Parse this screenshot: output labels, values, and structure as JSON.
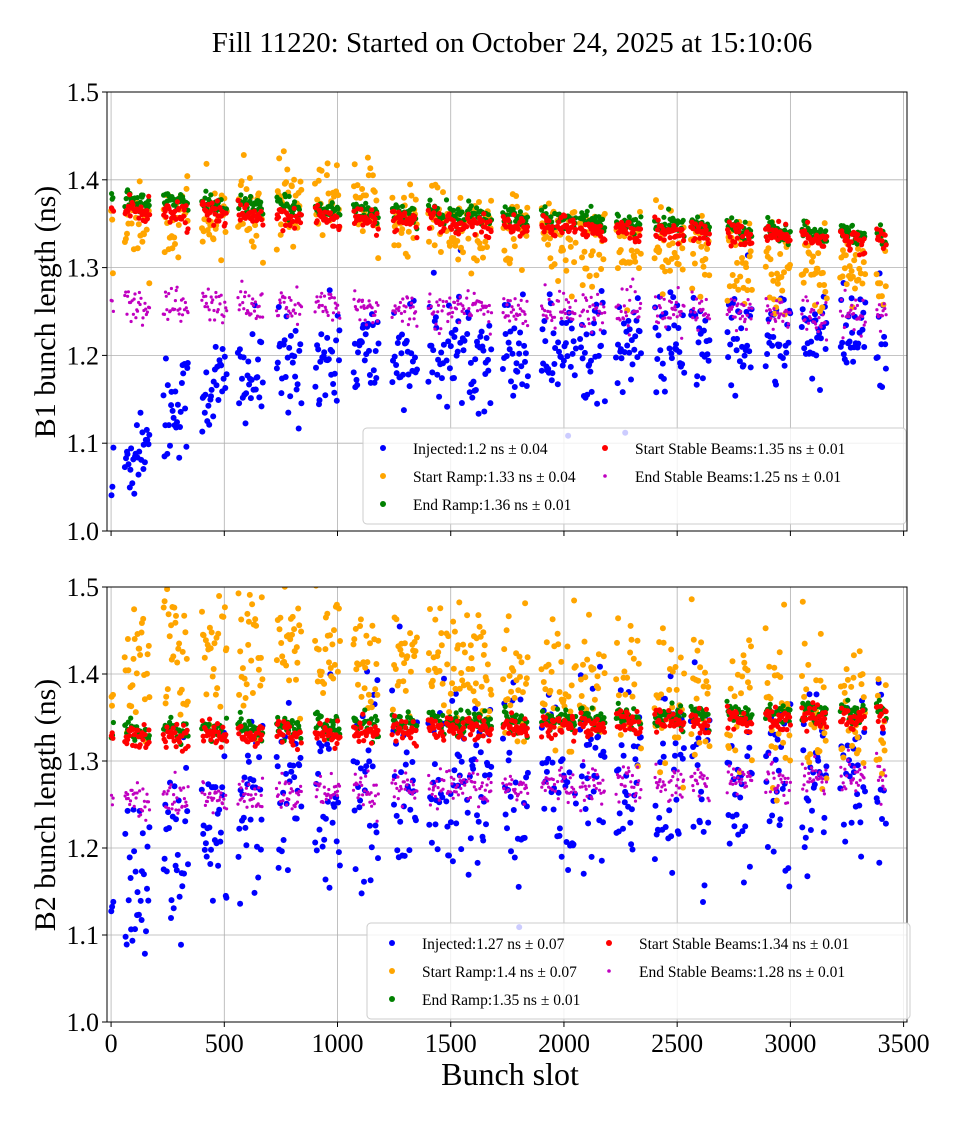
{
  "chart_data": {
    "title": "Fill 11220: Started on October 24, 2025 at 15:10:06",
    "xlabel": "Bunch slot",
    "xlim": [
      -18,
      3515
    ],
    "xticks": [
      0,
      500,
      1000,
      1500,
      2000,
      2500,
      3000,
      3500
    ],
    "grid": true,
    "legend_placement": "lower-right",
    "trains": [
      [
        0,
        10
      ],
      [
        60,
        170
      ],
      [
        230,
        340
      ],
      [
        400,
        510
      ],
      [
        560,
        670
      ],
      [
        730,
        840
      ],
      [
        900,
        1010
      ],
      [
        1070,
        1180
      ],
      [
        1240,
        1350
      ],
      [
        1400,
        1470
      ],
      [
        1480,
        1560
      ],
      [
        1570,
        1680
      ],
      [
        1730,
        1840
      ],
      [
        1900,
        1960
      ],
      [
        1970,
        2050
      ],
      [
        2070,
        2180
      ],
      [
        2230,
        2340
      ],
      [
        2400,
        2450
      ],
      [
        2460,
        2530
      ],
      [
        2560,
        2640
      ],
      [
        2720,
        2830
      ],
      [
        2890,
        3000
      ],
      [
        3050,
        3160
      ],
      [
        3220,
        3330
      ],
      [
        3380,
        3420
      ]
    ],
    "panels": [
      {
        "type": "scatter",
        "ylabel": "B1 bunch length (ns)",
        "ylim": [
          1.0,
          1.5
        ],
        "yticks": [
          "1.0",
          "1.1",
          "1.2",
          "1.3",
          "1.4",
          "1.5"
        ],
        "series": [
          {
            "name": "Injected:1.2 ns ± 0.04",
            "color": "#0000ff",
            "trend_x": [
              0,
              200,
              500,
              1000,
              2000,
              3400
            ],
            "trend_y": [
              1.05,
              1.13,
              1.17,
              1.2,
              1.21,
              1.22
            ],
            "spread": 0.03,
            "size": 3
          },
          {
            "name": "Start Ramp:1.33 ns ± 0.04",
            "color": "#ffa500",
            "trend_x": [
              0,
              500,
              1000,
              2000,
              3400
            ],
            "trend_y": [
              1.35,
              1.36,
              1.37,
              1.33,
              1.29
            ],
            "spread": 0.025,
            "size": 3
          },
          {
            "name": "End Ramp:1.36 ns ± 0.01",
            "color": "#008000",
            "trend_x": [
              0,
              3400
            ],
            "trend_y": [
              1.382,
              1.342
            ],
            "spread": 0.005,
            "size": 2.6
          },
          {
            "name": "Start Stable Beams:1.35 ns ± 0.01",
            "color": "#ff0000",
            "trend_x": [
              0,
              3400
            ],
            "trend_y": [
              1.37,
              1.335
            ],
            "spread": 0.006,
            "size": 2.6
          },
          {
            "name": "End Stable Beams:1.25 ns ± 0.01",
            "color": "#c000c0",
            "trend_x": [
              0,
              3400
            ],
            "trend_y": [
              1.262,
              1.25
            ],
            "spread": 0.01,
            "size": 1.6
          }
        ]
      },
      {
        "type": "scatter",
        "ylabel": "B2 bunch length (ns)",
        "ylim": [
          1.0,
          1.5
        ],
        "yticks": [
          "1.0",
          "1.1",
          "1.2",
          "1.3",
          "1.4",
          "1.5"
        ],
        "series": [
          {
            "name": "Injected:1.27 ns ± 0.07",
            "color": "#0000ff",
            "trend_x": [
              0,
              200,
              600,
              1000,
              2000,
              3400
            ],
            "trend_y": [
              1.12,
              1.2,
              1.25,
              1.27,
              1.28,
              1.28
            ],
            "spread": 0.055,
            "size": 3
          },
          {
            "name": "Start Ramp:1.4 ns ± 0.07",
            "color": "#ffa500",
            "trend_x": [
              0,
              700,
              1500,
              2500,
              3400
            ],
            "trend_y": [
              1.41,
              1.44,
              1.41,
              1.38,
              1.34
            ],
            "spread": 0.04,
            "size": 3
          },
          {
            "name": "End Ramp:1.35 ns ± 0.01",
            "color": "#008000",
            "trend_x": [
              0,
              3400
            ],
            "trend_y": [
              1.337,
              1.362
            ],
            "spread": 0.006,
            "size": 2.6
          },
          {
            "name": "Start Stable Beams:1.34 ns ± 0.01",
            "color": "#ff0000",
            "trend_x": [
              0,
              3400
            ],
            "trend_y": [
              1.33,
              1.355
            ],
            "spread": 0.007,
            "size": 2.6
          },
          {
            "name": "End Stable Beams:1.28 ns ± 0.01",
            "color": "#c000c0",
            "trend_x": [
              0,
              3400
            ],
            "trend_y": [
              1.258,
              1.288
            ],
            "spread": 0.01,
            "size": 1.6
          }
        ]
      }
    ]
  }
}
